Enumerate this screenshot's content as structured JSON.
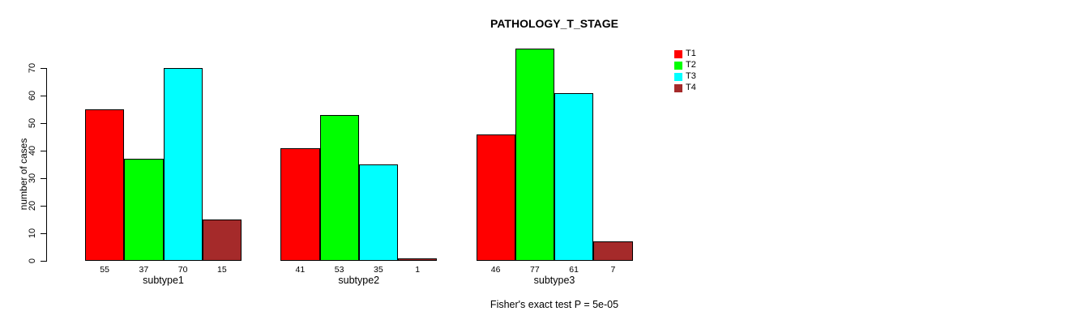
{
  "chart_data": {
    "type": "bar",
    "title": "PATHOLOGY_T_STAGE",
    "categories": [
      "subtype1",
      "subtype2",
      "subtype3"
    ],
    "series": [
      {
        "name": "T1",
        "color": "#ff0000",
        "values": [
          55,
          41,
          46
        ]
      },
      {
        "name": "T2",
        "color": "#00ff00",
        "values": [
          37,
          53,
          77
        ]
      },
      {
        "name": "T3",
        "color": "#00ffff",
        "values": [
          70,
          35,
          61
        ]
      },
      {
        "name": "T4",
        "color": "#a52a2a",
        "values": [
          15,
          1,
          7
        ]
      }
    ],
    "xlabel": "",
    "ylabel": "number of cases",
    "ylim": [
      0,
      70
    ],
    "yticks": [
      0,
      10,
      20,
      30,
      40,
      50,
      60,
      70
    ],
    "value_labels_under_bars": true,
    "grid": false,
    "legend": {
      "position": "top-right",
      "entries": [
        "T1",
        "T2",
        "T3",
        "T4"
      ]
    },
    "annotation": "Fisher's exact test P = 5e-05"
  }
}
